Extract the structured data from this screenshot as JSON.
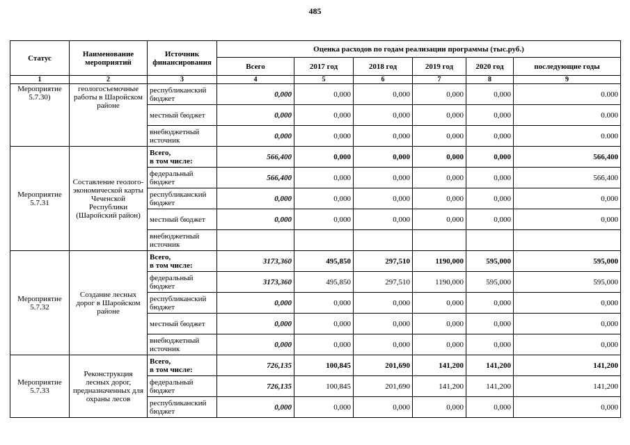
{
  "page": {
    "number": "485"
  },
  "table": {
    "headers": {
      "status": "Статус",
      "name": "Наименование мероприятий",
      "source": "Источник финансирования",
      "estimate": "Оценка расходов по годам реализации  программы (тыс.руб.)",
      "total": "Всего",
      "years": [
        "2017 год",
        "2018 год",
        "2019 год",
        "2020 год",
        "последующие годы"
      ],
      "column_numbers": [
        "1",
        "2",
        "3",
        "4",
        "5",
        "6",
        "7",
        "8",
        "9"
      ]
    },
    "groups": [
      {
        "status": "Мероприятие\n5.7.30)",
        "name": "геологосъемочные работы в Шаройском районе",
        "rows": [
          {
            "source": "республиканский бюджет",
            "bold": false,
            "values": [
              "0,000",
              "0,000",
              "0,000",
              "0,000",
              "0,000",
              "0.000"
            ]
          },
          {
            "source": "местный бюджет",
            "bold": false,
            "values": [
              "0,000",
              "0,000",
              "0,000",
              "0,000",
              "0,000",
              "0.000"
            ]
          },
          {
            "source": "внебюджетный источник",
            "bold": false,
            "values": [
              "0,000",
              "0,000",
              "0,000",
              "0,000",
              "0,000",
              "0.000"
            ]
          }
        ]
      },
      {
        "status": "Мероприятие\n5.7.31",
        "name": "Составление геолого-экономической карты Чеченской Республики (Шаройский район)",
        "rows": [
          {
            "source": "Всего,\nв том числе:",
            "bold": true,
            "values": [
              "566,400",
              "0,000",
              "0,000",
              "0,000",
              "0,000",
              "566,400"
            ]
          },
          {
            "source": "федеральный бюджет",
            "bold": false,
            "values": [
              "566,400",
              "0,000",
              "0,000",
              "0,000",
              "0,000",
              "566,400"
            ]
          },
          {
            "source": "республиканский бюджет",
            "bold": false,
            "values": [
              "0,000",
              "0,000",
              "0,000",
              "0,000",
              "0,000",
              "0,000"
            ]
          },
          {
            "source": "местный бюджет",
            "bold": false,
            "values": [
              "0,000",
              "0,000",
              "0,000",
              "0,000",
              "0,000",
              "0,000"
            ]
          },
          {
            "source": "внебюджетный источник",
            "bold": false,
            "values": [
              "",
              "",
              "",
              "",
              "",
              ""
            ]
          }
        ]
      },
      {
        "status": "Мероприятие\n5.7.32",
        "name": "Создание лесных дорог в Шаройском районе",
        "rows": [
          {
            "source": "Всего,\nв том числе:",
            "bold": true,
            "values": [
              "3173,360",
              "495,850",
              "297,510",
              "1190,000",
              "595,000",
              "595,000"
            ]
          },
          {
            "source": "федеральный бюджет",
            "bold": false,
            "values": [
              "3173,360",
              "495,850",
              "297,510",
              "1190,000",
              "595,000",
              "595,000"
            ]
          },
          {
            "source": "республиканский бюджет",
            "bold": false,
            "values": [
              "0,000",
              "0,000",
              "0,000",
              "0,000",
              "0,000",
              "0,000"
            ]
          },
          {
            "source": "местный бюджет",
            "bold": false,
            "values": [
              "0,000",
              "0,000",
              "0,000",
              "0,000",
              "0,000",
              "0,000"
            ]
          },
          {
            "source": "внебюджетный источник",
            "bold": false,
            "values": [
              "0,000",
              "0,000",
              "0,000",
              "0,000",
              "0,000",
              "0,000"
            ]
          }
        ]
      },
      {
        "status": "Мероприятие\n5.7.33",
        "name": "Реконструкция лесных дорог, предназначенных для охраны лесов",
        "rows": [
          {
            "source": "Всего,\nв том числе:",
            "bold": true,
            "values": [
              "726,135",
              "100,845",
              "201,690",
              "141,200",
              "141,200",
              "141,200"
            ]
          },
          {
            "source": "федеральный бюджет",
            "bold": false,
            "values": [
              "726,135",
              "100,845",
              "201,690",
              "141,200",
              "141,200",
              "141,200"
            ]
          },
          {
            "source": "республиканский бюджет",
            "bold": false,
            "values": [
              "0,000",
              "0,000",
              "0,000",
              "0,000",
              "0,000",
              "0,000"
            ]
          }
        ]
      }
    ]
  }
}
